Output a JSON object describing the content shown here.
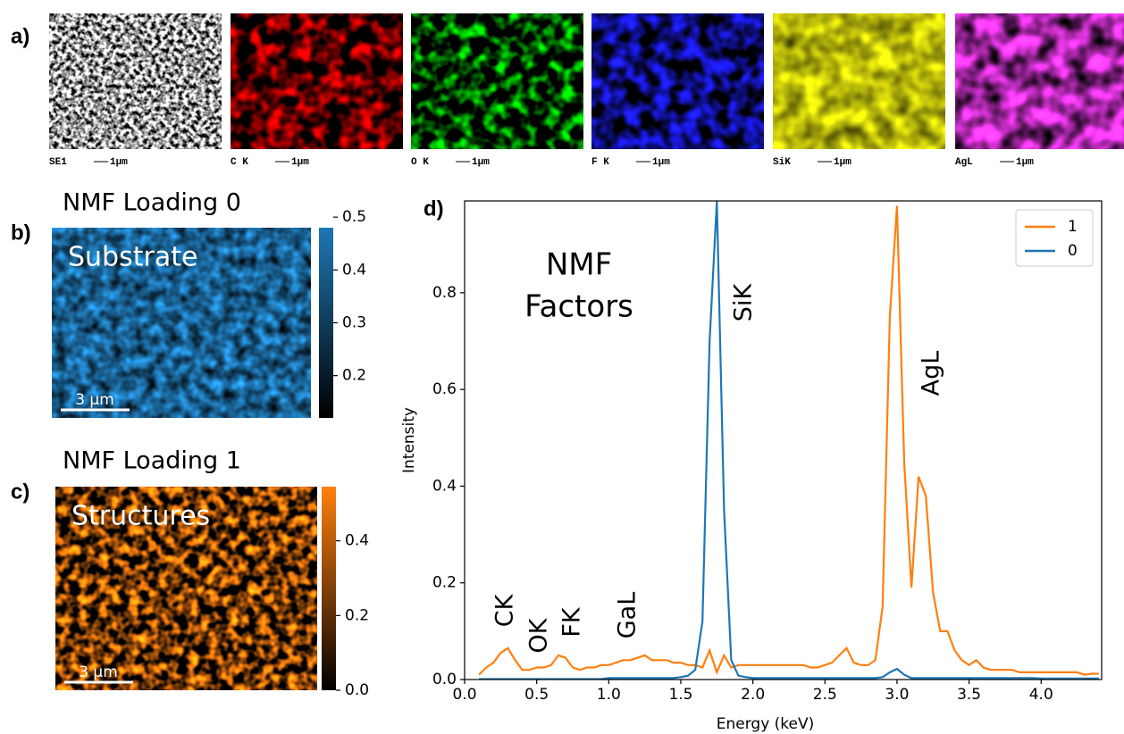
{
  "panel_a": {
    "label": "a)",
    "maps": [
      {
        "name": "SE1",
        "scale": "1µm"
      },
      {
        "name": "C K",
        "scale": "1µm"
      },
      {
        "name": "O K",
        "scale": "1µm"
      },
      {
        "name": "F K",
        "scale": "1µm"
      },
      {
        "name": "SiK",
        "scale": "1µm"
      },
      {
        "name": "AgL",
        "scale": "1µm"
      }
    ]
  },
  "chart_data": [
    {
      "type": "heatmap",
      "panel_label": "b)",
      "title": "NMF Loading 0",
      "annotation": "Substrate",
      "scale_bar": "3 µm",
      "color": "#1f77b4",
      "ylim": [
        0.12,
        0.48
      ],
      "yticks": [
        0.2,
        0.3,
        0.4,
        0.5
      ]
    },
    {
      "type": "heatmap",
      "panel_label": "c)",
      "title": "NMF Loading 1",
      "annotation": "Structures",
      "scale_bar": "3 µm",
      "color": "#ff7f0e",
      "ylim": [
        0,
        0.545
      ],
      "yticks": [
        {
          "value": 0,
          "label": "0.0"
        },
        0.2,
        0.4
      ]
    },
    {
      "type": "line",
      "panel_label": "d)",
      "xlabel": "Energy (keV)",
      "ylabel": "Intensity",
      "annotations": [
        "NMF",
        "Factors",
        "CK",
        "OK",
        "FK",
        "GaL",
        "SiK",
        "AgL"
      ],
      "xlim": [
        0,
        4.42
      ],
      "ylim": [
        0,
        0.99
      ],
      "xticks": [
        {
          "value": 0,
          "label": "0.0"
        },
        0.5,
        {
          "value": 1,
          "label": "1.0"
        },
        1.5,
        {
          "value": 2,
          "label": "2.0"
        },
        2.5,
        {
          "value": 3,
          "label": "3.0"
        },
        3.5,
        {
          "value": 4,
          "label": "4.0"
        }
      ],
      "yticks": [
        {
          "value": 0,
          "label": "0.0"
        },
        0.2,
        0.4,
        0.6,
        0.8
      ],
      "legend": "upper right",
      "x": [
        0.1,
        0.15,
        0.2,
        0.25,
        0.3,
        0.35,
        0.4,
        0.45,
        0.5,
        0.55,
        0.6,
        0.65,
        0.7,
        0.75,
        0.8,
        0.85,
        0.9,
        0.95,
        1.0,
        1.05,
        1.1,
        1.15,
        1.2,
        1.25,
        1.3,
        1.35,
        1.4,
        1.45,
        1.5,
        1.55,
        1.6,
        1.65,
        1.7,
        1.75,
        1.8,
        1.85,
        1.9,
        1.95,
        2.0,
        2.05,
        2.1,
        2.15,
        2.2,
        2.25,
        2.3,
        2.35,
        2.4,
        2.45,
        2.5,
        2.55,
        2.6,
        2.65,
        2.7,
        2.75,
        2.8,
        2.85,
        2.9,
        2.95,
        3.0,
        3.05,
        3.1,
        3.15,
        3.2,
        3.25,
        3.3,
        3.35,
        3.4,
        3.45,
        3.5,
        3.55,
        3.6,
        3.65,
        3.7,
        3.75,
        3.8,
        3.85,
        3.9,
        3.95,
        4.0,
        4.05,
        4.1,
        4.15,
        4.2,
        4.25,
        4.3,
        4.35,
        4.4
      ],
      "series": [
        {
          "name": "1",
          "color": "#ff7f0e",
          "values": [
            0.01,
            0.025,
            0.035,
            0.055,
            0.065,
            0.04,
            0.02,
            0.02,
            0.025,
            0.025,
            0.03,
            0.05,
            0.045,
            0.025,
            0.02,
            0.025,
            0.025,
            0.03,
            0.03,
            0.035,
            0.04,
            0.04,
            0.045,
            0.05,
            0.04,
            0.04,
            0.04,
            0.035,
            0.035,
            0.03,
            0.03,
            0.025,
            0.06,
            0.015,
            0.05,
            0.025,
            0.03,
            0.03,
            0.03,
            0.03,
            0.03,
            0.03,
            0.03,
            0.03,
            0.03,
            0.03,
            0.025,
            0.025,
            0.03,
            0.035,
            0.05,
            0.065,
            0.035,
            0.03,
            0.03,
            0.04,
            0.15,
            0.75,
            0.98,
            0.45,
            0.19,
            0.42,
            0.38,
            0.18,
            0.1,
            0.1,
            0.06,
            0.04,
            0.03,
            0.04,
            0.025,
            0.02,
            0.02,
            0.02,
            0.02,
            0.015,
            0.015,
            0.015,
            0.015,
            0.015,
            0.015,
            0.015,
            0.015,
            0.015,
            0.01,
            0.012,
            0.012
          ]
        },
        {
          "name": "0",
          "color": "#1f77b4",
          "values": [
            0.001,
            0.001,
            0.001,
            0.001,
            0.001,
            0.001,
            0.001,
            0.001,
            0.001,
            0.001,
            0.001,
            0.001,
            0.001,
            0.001,
            0.001,
            0.001,
            0.001,
            0.001,
            0.003,
            0.003,
            0.003,
            0.003,
            0.003,
            0.003,
            0.003,
            0.003,
            0.003,
            0.003,
            0.005,
            0.008,
            0.02,
            0.12,
            0.7,
            0.99,
            0.35,
            0.04,
            0.008,
            0.005,
            0.003,
            0.003,
            0.003,
            0.003,
            0.003,
            0.003,
            0.003,
            0.003,
            0.003,
            0.003,
            0.003,
            0.003,
            0.003,
            0.003,
            0.003,
            0.003,
            0.003,
            0.003,
            0.005,
            0.015,
            0.022,
            0.01,
            0.003,
            0.003,
            0.003,
            0.003,
            0.003,
            0.003,
            0.003,
            0.003,
            0.003,
            0.003,
            0.003,
            0.003,
            0.003,
            0.003,
            0.003,
            0.003,
            0.003,
            0.003,
            0.002,
            0.002,
            0.002,
            0.002,
            0.002,
            0.002,
            0.002,
            0.002,
            0.002
          ]
        }
      ]
    }
  ]
}
